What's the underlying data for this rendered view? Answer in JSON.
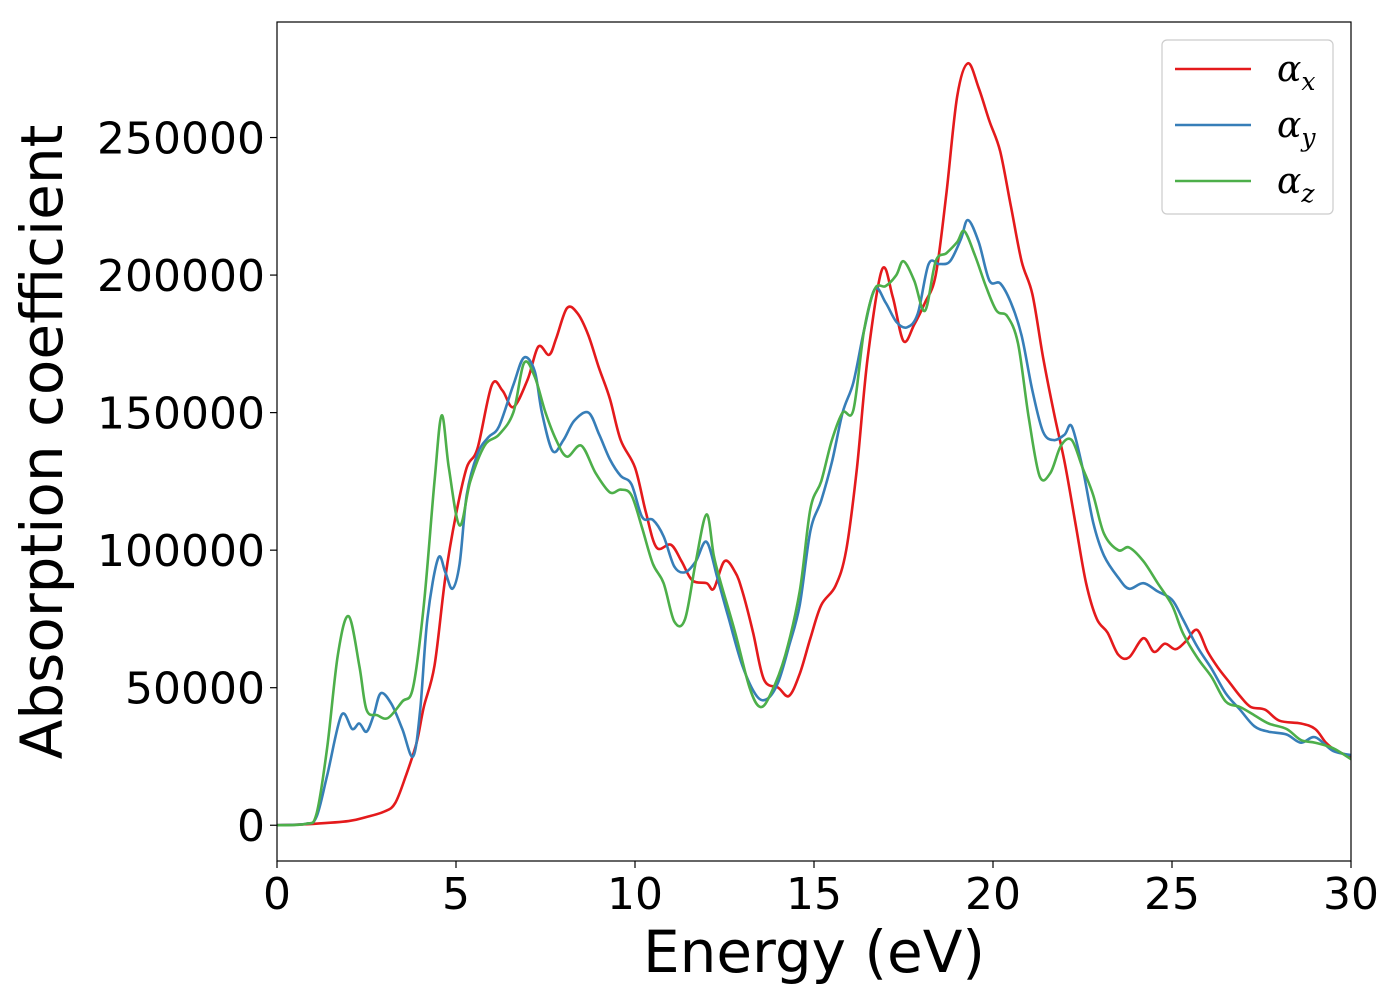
{
  "chart_data": {
    "type": "line",
    "title": "",
    "xlabel": "Energy (eV)",
    "ylabel": "Absorption coefficient",
    "xlim": [
      0,
      30
    ],
    "ylim": [
      -13000,
      292000
    ],
    "xticks": [
      0,
      5,
      10,
      15,
      20,
      25,
      30
    ],
    "yticks": [
      0,
      50000,
      100000,
      150000,
      200000,
      250000
    ],
    "grid": false,
    "legend_position": "top-right",
    "series": [
      {
        "name": "α",
        "subscript": "x",
        "color": "#e41a1c",
        "points": [
          [
            0,
            0
          ],
          [
            1,
            500
          ],
          [
            2,
            1500
          ],
          [
            2.5,
            3000
          ],
          [
            3,
            5000
          ],
          [
            3.3,
            8000
          ],
          [
            3.6,
            18000
          ],
          [
            3.9,
            30000
          ],
          [
            4.1,
            43000
          ],
          [
            4.4,
            58000
          ],
          [
            4.7,
            90000
          ],
          [
            5,
            113000
          ],
          [
            5.3,
            130000
          ],
          [
            5.6,
            137000
          ],
          [
            6,
            160000
          ],
          [
            6.3,
            158000
          ],
          [
            6.6,
            152000
          ],
          [
            7,
            162000
          ],
          [
            7.3,
            174000
          ],
          [
            7.6,
            171000
          ],
          [
            7.8,
            177000
          ],
          [
            8.1,
            188000
          ],
          [
            8.4,
            186000
          ],
          [
            8.7,
            178000
          ],
          [
            9,
            166000
          ],
          [
            9.3,
            155000
          ],
          [
            9.6,
            140000
          ],
          [
            10,
            130000
          ],
          [
            10.3,
            114000
          ],
          [
            10.6,
            101000
          ],
          [
            11,
            102000
          ],
          [
            11.3,
            96000
          ],
          [
            11.6,
            89000
          ],
          [
            12,
            88000
          ],
          [
            12.2,
            86000
          ],
          [
            12.5,
            96000
          ],
          [
            12.8,
            92000
          ],
          [
            13,
            85000
          ],
          [
            13.3,
            70000
          ],
          [
            13.6,
            53000
          ],
          [
            14,
            50000
          ],
          [
            14.3,
            47000
          ],
          [
            14.6,
            55000
          ],
          [
            14.9,
            68000
          ],
          [
            15.2,
            80000
          ],
          [
            15.6,
            87000
          ],
          [
            15.9,
            100000
          ],
          [
            16.2,
            130000
          ],
          [
            16.5,
            170000
          ],
          [
            16.9,
            202000
          ],
          [
            17.2,
            192000
          ],
          [
            17.5,
            176000
          ],
          [
            17.8,
            182000
          ],
          [
            18.1,
            190000
          ],
          [
            18.4,
            200000
          ],
          [
            18.7,
            230000
          ],
          [
            19,
            265000
          ],
          [
            19.3,
            277000
          ],
          [
            19.6,
            268000
          ],
          [
            19.9,
            256000
          ],
          [
            20.2,
            245000
          ],
          [
            20.5,
            225000
          ],
          [
            20.8,
            205000
          ],
          [
            21.1,
            193000
          ],
          [
            21.4,
            170000
          ],
          [
            21.7,
            150000
          ],
          [
            22,
            132000
          ],
          [
            22.3,
            110000
          ],
          [
            22.6,
            88000
          ],
          [
            22.9,
            75000
          ],
          [
            23.2,
            70000
          ],
          [
            23.5,
            62000
          ],
          [
            23.8,
            61000
          ],
          [
            24.2,
            68000
          ],
          [
            24.5,
            63000
          ],
          [
            24.8,
            66000
          ],
          [
            25.1,
            64000
          ],
          [
            25.4,
            67000
          ],
          [
            25.7,
            71000
          ],
          [
            26,
            63000
          ],
          [
            26.3,
            57000
          ],
          [
            26.6,
            52000
          ],
          [
            26.9,
            47000
          ],
          [
            27.2,
            43000
          ],
          [
            27.6,
            42000
          ],
          [
            28,
            38000
          ],
          [
            28.6,
            37000
          ],
          [
            29,
            35000
          ],
          [
            29.3,
            30000
          ],
          [
            29.6,
            27000
          ],
          [
            30,
            25000
          ]
        ]
      },
      {
        "name": "α",
        "subscript": "y",
        "color": "#377eb8",
        "points": [
          [
            0,
            0
          ],
          [
            0.8,
            500
          ],
          [
            1.1,
            3000
          ],
          [
            1.4,
            18000
          ],
          [
            1.8,
            40000
          ],
          [
            2.1,
            35000
          ],
          [
            2.3,
            37000
          ],
          [
            2.5,
            34000
          ],
          [
            2.7,
            40000
          ],
          [
            2.9,
            48000
          ],
          [
            3.2,
            44000
          ],
          [
            3.5,
            35000
          ],
          [
            3.8,
            25000
          ],
          [
            4,
            42000
          ],
          [
            4.2,
            75000
          ],
          [
            4.5,
            97000
          ],
          [
            4.7,
            92000
          ],
          [
            4.9,
            86000
          ],
          [
            5.1,
            95000
          ],
          [
            5.3,
            120000
          ],
          [
            5.6,
            135000
          ],
          [
            5.9,
            141000
          ],
          [
            6.2,
            145000
          ],
          [
            6.6,
            160000
          ],
          [
            6.9,
            170000
          ],
          [
            7.2,
            165000
          ],
          [
            7.4,
            150000
          ],
          [
            7.7,
            136000
          ],
          [
            8,
            140000
          ],
          [
            8.3,
            147000
          ],
          [
            8.7,
            150000
          ],
          [
            9,
            142000
          ],
          [
            9.3,
            133000
          ],
          [
            9.6,
            127000
          ],
          [
            9.9,
            124000
          ],
          [
            10.2,
            112000
          ],
          [
            10.5,
            111000
          ],
          [
            10.8,
            105000
          ],
          [
            11.1,
            94000
          ],
          [
            11.4,
            92000
          ],
          [
            11.7,
            96000
          ],
          [
            12,
            103000
          ],
          [
            12.3,
            90000
          ],
          [
            12.6,
            76000
          ],
          [
            13,
            58000
          ],
          [
            13.4,
            47000
          ],
          [
            13.7,
            46000
          ],
          [
            14,
            52000
          ],
          [
            14.3,
            65000
          ],
          [
            14.6,
            80000
          ],
          [
            14.9,
            107000
          ],
          [
            15.2,
            118000
          ],
          [
            15.5,
            132000
          ],
          [
            15.8,
            150000
          ],
          [
            16.1,
            161000
          ],
          [
            16.4,
            180000
          ],
          [
            16.7,
            195000
          ],
          [
            17,
            190000
          ],
          [
            17.3,
            183000
          ],
          [
            17.6,
            181000
          ],
          [
            17.9,
            186000
          ],
          [
            18.2,
            204000
          ],
          [
            18.5,
            204000
          ],
          [
            18.8,
            205000
          ],
          [
            19.1,
            213000
          ],
          [
            19.3,
            220000
          ],
          [
            19.6,
            212000
          ],
          [
            19.9,
            198000
          ],
          [
            20.2,
            197000
          ],
          [
            20.5,
            190000
          ],
          [
            20.8,
            178000
          ],
          [
            21.1,
            158000
          ],
          [
            21.4,
            143000
          ],
          [
            21.7,
            140000
          ],
          [
            22,
            142000
          ],
          [
            22.2,
            145000
          ],
          [
            22.5,
            130000
          ],
          [
            22.8,
            110000
          ],
          [
            23.1,
            98000
          ],
          [
            23.5,
            90000
          ],
          [
            23.8,
            86000
          ],
          [
            24.2,
            88000
          ],
          [
            24.6,
            85000
          ],
          [
            25,
            82000
          ],
          [
            25.3,
            75000
          ],
          [
            25.7,
            65000
          ],
          [
            26.1,
            57000
          ],
          [
            26.5,
            48000
          ],
          [
            26.9,
            42000
          ],
          [
            27.3,
            36000
          ],
          [
            27.7,
            34000
          ],
          [
            28.2,
            33000
          ],
          [
            28.6,
            30000
          ],
          [
            29,
            32000
          ],
          [
            29.5,
            27000
          ],
          [
            30,
            25500
          ]
        ]
      },
      {
        "name": "α",
        "subscript": "z",
        "color": "#4daf4a",
        "points": [
          [
            0,
            0
          ],
          [
            0.8,
            500
          ],
          [
            1.1,
            4000
          ],
          [
            1.4,
            28000
          ],
          [
            1.7,
            62000
          ],
          [
            2,
            76000
          ],
          [
            2.3,
            58000
          ],
          [
            2.5,
            42000
          ],
          [
            2.8,
            40000
          ],
          [
            3.1,
            39000
          ],
          [
            3.5,
            45000
          ],
          [
            3.8,
            50000
          ],
          [
            4.1,
            80000
          ],
          [
            4.4,
            125000
          ],
          [
            4.6,
            149000
          ],
          [
            4.8,
            130000
          ],
          [
            5.1,
            109000
          ],
          [
            5.4,
            125000
          ],
          [
            5.8,
            138000
          ],
          [
            6.2,
            142000
          ],
          [
            6.6,
            150000
          ],
          [
            6.9,
            168000
          ],
          [
            7.2,
            163000
          ],
          [
            7.5,
            150000
          ],
          [
            7.8,
            140000
          ],
          [
            8.1,
            134000
          ],
          [
            8.5,
            138000
          ],
          [
            8.9,
            128000
          ],
          [
            9.3,
            121000
          ],
          [
            9.6,
            122000
          ],
          [
            9.9,
            120000
          ],
          [
            10.2,
            108000
          ],
          [
            10.5,
            95000
          ],
          [
            10.8,
            88000
          ],
          [
            11.1,
            74000
          ],
          [
            11.4,
            75000
          ],
          [
            11.7,
            96000
          ],
          [
            12,
            113000
          ],
          [
            12.2,
            98000
          ],
          [
            12.4,
            88000
          ],
          [
            12.8,
            70000
          ],
          [
            13.2,
            50000
          ],
          [
            13.5,
            43000
          ],
          [
            13.8,
            48000
          ],
          [
            14.2,
            62000
          ],
          [
            14.6,
            85000
          ],
          [
            14.9,
            115000
          ],
          [
            15.2,
            125000
          ],
          [
            15.5,
            140000
          ],
          [
            15.8,
            150000
          ],
          [
            16.1,
            151000
          ],
          [
            16.4,
            180000
          ],
          [
            16.7,
            195000
          ],
          [
            17,
            196000
          ],
          [
            17.3,
            200000
          ],
          [
            17.5,
            205000
          ],
          [
            17.8,
            198000
          ],
          [
            18.1,
            187000
          ],
          [
            18.4,
            205000
          ],
          [
            18.7,
            208000
          ],
          [
            19,
            212000
          ],
          [
            19.2,
            216000
          ],
          [
            19.5,
            207000
          ],
          [
            19.8,
            196000
          ],
          [
            20.1,
            187000
          ],
          [
            20.4,
            185000
          ],
          [
            20.7,
            175000
          ],
          [
            21,
            148000
          ],
          [
            21.3,
            127000
          ],
          [
            21.6,
            128000
          ],
          [
            21.9,
            138000
          ],
          [
            22.2,
            140000
          ],
          [
            22.5,
            130000
          ],
          [
            22.8,
            120000
          ],
          [
            23.1,
            106000
          ],
          [
            23.5,
            100000
          ],
          [
            23.8,
            101000
          ],
          [
            24.2,
            96000
          ],
          [
            24.6,
            88000
          ],
          [
            25,
            80000
          ],
          [
            25.3,
            70000
          ],
          [
            25.7,
            61000
          ],
          [
            26.1,
            54000
          ],
          [
            26.5,
            45000
          ],
          [
            26.9,
            43000
          ],
          [
            27.3,
            40000
          ],
          [
            27.7,
            37000
          ],
          [
            28.2,
            35000
          ],
          [
            28.6,
            31000
          ],
          [
            29,
            30000
          ],
          [
            29.5,
            28000
          ],
          [
            30,
            24000
          ]
        ]
      }
    ]
  }
}
